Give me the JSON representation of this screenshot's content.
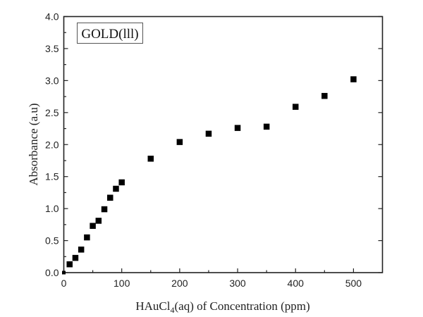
{
  "chart_data": {
    "type": "scatter",
    "title": "",
    "legend_label": "GOLD(lll)",
    "legend_placement": "top-left",
    "xlabel": {
      "prefix": "HAuCl",
      "subscript": "4",
      "suffix": "(aq) of Concentration (ppm)"
    },
    "ylabel": "Absorbance (a.u)",
    "xlim": [
      0,
      550
    ],
    "ylim": [
      0,
      4.0
    ],
    "x_ticks": [
      0,
      100,
      200,
      300,
      400,
      500
    ],
    "x_tick_labels": [
      "0",
      "100",
      "200",
      "300",
      "400",
      "500"
    ],
    "x_minor_step": 50,
    "y_ticks": [
      0,
      0.5,
      1.0,
      1.5,
      2.0,
      2.5,
      3.0,
      3.5,
      4.0
    ],
    "y_tick_labels": [
      "0.0",
      "0.5",
      "1.0",
      "1.5",
      "2.0",
      "2.5",
      "3.0",
      "3.5",
      "4.0"
    ],
    "y_minor_step": 0.25,
    "grid": false,
    "marker": "square",
    "marker_color": "#000000",
    "series": [
      {
        "name": "GOLD(lll)",
        "x": [
          0,
          10,
          20,
          30,
          40,
          50,
          60,
          70,
          80,
          90,
          100,
          150,
          200,
          250,
          300,
          350,
          400,
          450,
          500
        ],
        "y": [
          0.0,
          0.13,
          0.23,
          0.36,
          0.55,
          0.73,
          0.81,
          0.99,
          1.17,
          1.31,
          1.41,
          1.78,
          2.04,
          2.17,
          2.26,
          2.28,
          2.59,
          2.76,
          3.02
        ]
      }
    ]
  }
}
